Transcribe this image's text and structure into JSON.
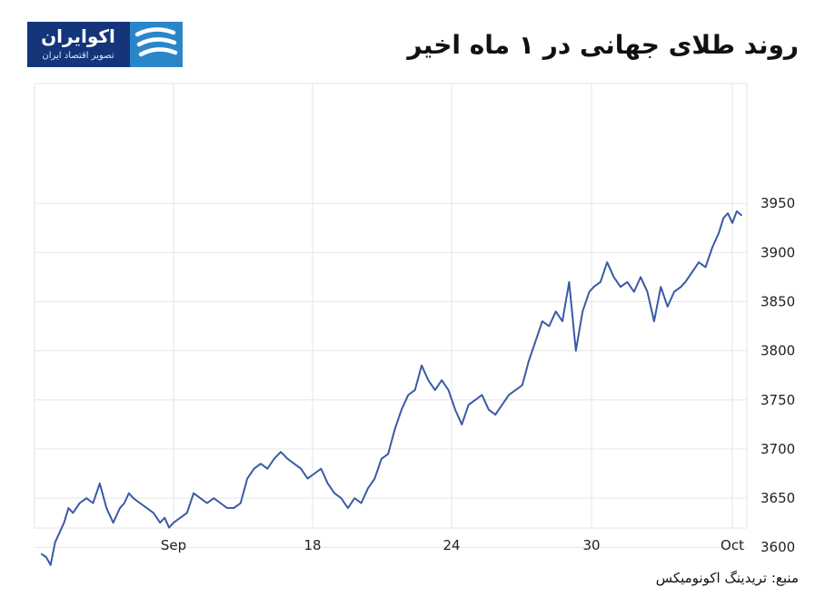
{
  "logo": {
    "name": "اکوایران",
    "tagline": "تصویر اقتصاد ایران"
  },
  "source": "منبع: تریدینگ اکونومیکس",
  "chart_data": {
    "type": "line",
    "title": "روند طلای جهانی در ۱ ماه اخیر",
    "xlabel": "",
    "ylabel": "",
    "x_ticks": [
      "Sep",
      "18",
      "24",
      "30",
      "Oct"
    ],
    "y_ticks": [
      3600,
      3650,
      3700,
      3750,
      3800,
      3850,
      3900,
      3950
    ],
    "xlim": [
      -6,
      25.5
    ],
    "ylim": [
      3555,
      3965
    ],
    "grid": true,
    "line_color": "#3a5aa5",
    "x_units": "days from Sep 12 tick",
    "series": [
      {
        "x": [
          -5.9,
          -5.7,
          -5.5,
          -5.3,
          -5.1,
          -4.9,
          -4.7,
          -4.5,
          -4.2,
          -3.9,
          -3.6,
          -3.3,
          -3.0,
          -2.7,
          -2.4,
          -2.2,
          -2.0,
          -1.8,
          -1.5,
          -1.2,
          -0.9,
          -0.6,
          -0.4,
          -0.2,
          0.0,
          0.3,
          0.6,
          0.9,
          1.2,
          1.5,
          1.8,
          2.1,
          2.4,
          2.7,
          3.0,
          3.3,
          3.6,
          3.9,
          4.2,
          4.5,
          4.8,
          5.1,
          5.4,
          5.7,
          6.0,
          6.3,
          6.6,
          6.9,
          7.2,
          7.5,
          7.8,
          8.1,
          8.4,
          8.7,
          9.0,
          9.3,
          9.6,
          9.9,
          10.2,
          10.5,
          10.8,
          11.1,
          11.4,
          11.7,
          12.0,
          12.3,
          12.6,
          12.9,
          13.2,
          13.5,
          13.8,
          14.1,
          14.4,
          14.7,
          15.0,
          15.3,
          15.6,
          15.9,
          16.2,
          16.5,
          16.8,
          17.1,
          17.4,
          17.7,
          18.0,
          18.3,
          18.6,
          18.8,
          19.1,
          19.4,
          19.7,
          20.0,
          20.3,
          20.6,
          20.9,
          21.2,
          21.5,
          21.8,
          22.1,
          22.4,
          22.7,
          22.9,
          23.2,
          23.5,
          23.8,
          24.1,
          24.4,
          24.6,
          24.8,
          25.0,
          25.2,
          25.4
        ],
        "y": [
          3593,
          3590,
          3582,
          3605,
          3615,
          3625,
          3640,
          3635,
          3645,
          3650,
          3645,
          3665,
          3640,
          3625,
          3640,
          3645,
          3655,
          3650,
          3645,
          3640,
          3635,
          3625,
          3630,
          3620,
          3625,
          3630,
          3635,
          3655,
          3650,
          3645,
          3650,
          3645,
          3640,
          3640,
          3645,
          3670,
          3680,
          3685,
          3680,
          3690,
          3697,
          3690,
          3685,
          3680,
          3670,
          3675,
          3680,
          3665,
          3655,
          3650,
          3640,
          3650,
          3645,
          3660,
          3670,
          3690,
          3695,
          3720,
          3740,
          3755,
          3760,
          3785,
          3770,
          3760,
          3770,
          3760,
          3740,
          3725,
          3745,
          3750,
          3755,
          3740,
          3735,
          3745,
          3755,
          3760,
          3765,
          3790,
          3810,
          3830,
          3825,
          3840,
          3830,
          3870,
          3800,
          3840,
          3860,
          3865,
          3870,
          3890,
          3875,
          3865,
          3870,
          3860,
          3875,
          3860,
          3830,
          3865,
          3845,
          3860,
          3865,
          3870,
          3880,
          3890,
          3885,
          3905,
          3920,
          3935,
          3940,
          3930,
          3942,
          3938
        ]
      }
    ]
  }
}
